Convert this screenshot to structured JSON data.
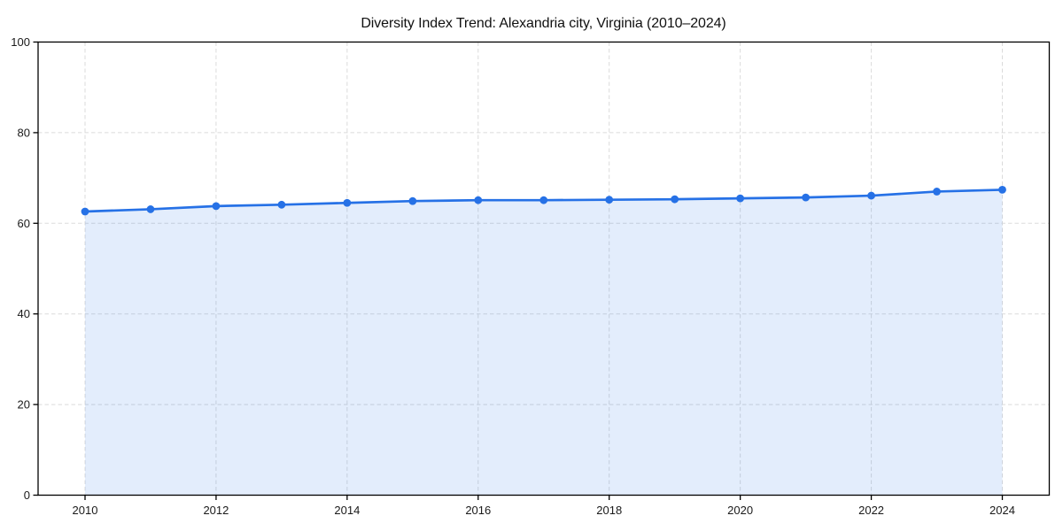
{
  "page": {
    "background": "#ffffff"
  },
  "chart_data": {
    "type": "line",
    "title": "Diversity Index Trend: Alexandria city, Virginia (2010–2024)",
    "x": [
      2010,
      2011,
      2012,
      2013,
      2014,
      2015,
      2016,
      2017,
      2018,
      2019,
      2020,
      2021,
      2022,
      2023,
      2024
    ],
    "series": [
      {
        "name": "Diversity Index",
        "values": [
          62.6,
          63.1,
          63.8,
          64.1,
          64.5,
          64.9,
          65.1,
          65.1,
          65.2,
          65.3,
          65.5,
          65.7,
          66.1,
          67.0,
          67.4
        ]
      }
    ],
    "xlabel": "",
    "ylabel": "",
    "ylim": [
      0,
      100
    ],
    "yticks": [
      0,
      20,
      40,
      60,
      80,
      100
    ],
    "xticks": [
      2010,
      2012,
      2014,
      2016,
      2018,
      2020,
      2022,
      2024
    ],
    "grid": true,
    "grid_style": "dashed",
    "legend": "none",
    "marker": "circle",
    "area_fill": true,
    "colors": {
      "line": "#2671E6",
      "fill": "#2671E6",
      "fill_opacity": 0.13,
      "grid": "#DBDBDB",
      "axis": "#000000",
      "tick_label": "#1A1A1A",
      "title": "#111111"
    }
  }
}
